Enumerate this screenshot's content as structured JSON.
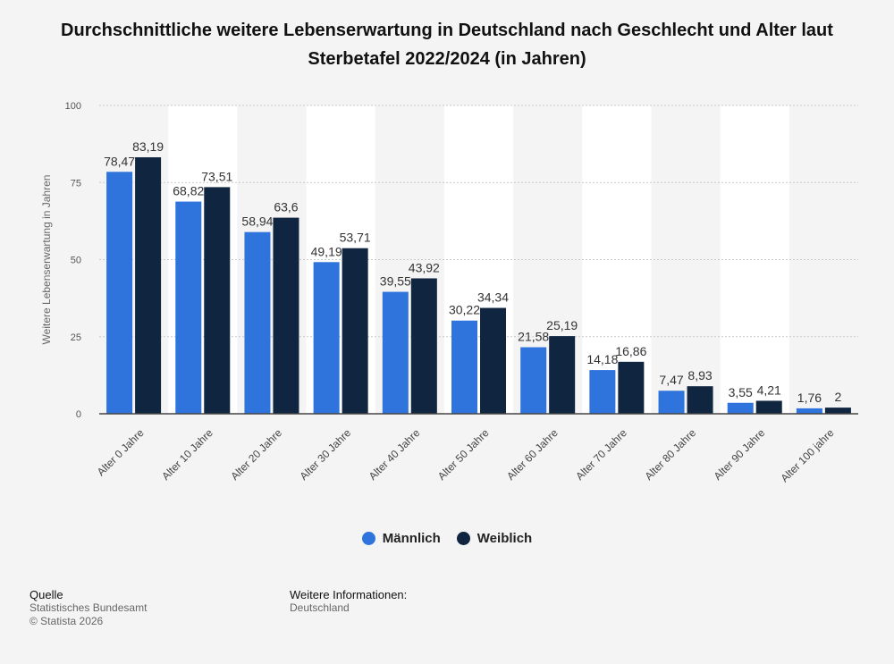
{
  "title": "Durchschnittliche weitere Lebenserwartung in Deutschland nach Geschlecht und Alter laut Sterbetafel 2022/2024 (in Jahren)",
  "colors": {
    "male": "#2f74dc",
    "female": "#10253f",
    "band": "#ffffff",
    "grid": "#c9c9c9",
    "axis": "#444444"
  },
  "chart_data": {
    "type": "bar",
    "categories": [
      "Alter 0 Jahre",
      "Alter 10 Jahre",
      "Alter 20 Jahre",
      "Alter 30 Jahre",
      "Alter 40 Jahre",
      "Alter 50 Jahre",
      "Alter 60 Jahre",
      "Alter 70 Jahre",
      "Alter 80 Jahre",
      "Alter 90 Jahre",
      "Alter 100 jahre"
    ],
    "series": [
      {
        "name": "Männlich",
        "values": [
          78.47,
          68.82,
          58.94,
          49.19,
          39.55,
          30.22,
          21.58,
          14.18,
          7.47,
          3.55,
          1.76
        ],
        "labels": [
          "78,47",
          "68,82",
          "58,94",
          "49,19",
          "39,55",
          "30,22",
          "21,58",
          "14,18",
          "7,47",
          "3,55",
          "1,76"
        ]
      },
      {
        "name": "Weiblich",
        "values": [
          83.19,
          73.51,
          63.6,
          53.71,
          43.92,
          34.34,
          25.19,
          16.86,
          8.93,
          4.21,
          2
        ],
        "labels": [
          "83,19",
          "73,51",
          "63,6",
          "53,71",
          "43,92",
          "34,34",
          "25,19",
          "16,86",
          "8,93",
          "4,21",
          "2"
        ]
      }
    ],
    "ylabel": "Weitere Lebenserwartung in Jahren",
    "xlabel": "",
    "ylim": [
      0,
      100
    ],
    "yticks": [
      0,
      25,
      50,
      75,
      100
    ],
    "grid": true,
    "legend": "bottom-center"
  },
  "legend": {
    "male": "Männlich",
    "female": "Weiblich"
  },
  "footer": {
    "source_heading": "Quelle",
    "source_lines": [
      "Statistisches Bundesamt",
      "© Statista 2026"
    ],
    "info_heading": "Weitere Informationen:",
    "info_lines": [
      "Deutschland"
    ]
  }
}
